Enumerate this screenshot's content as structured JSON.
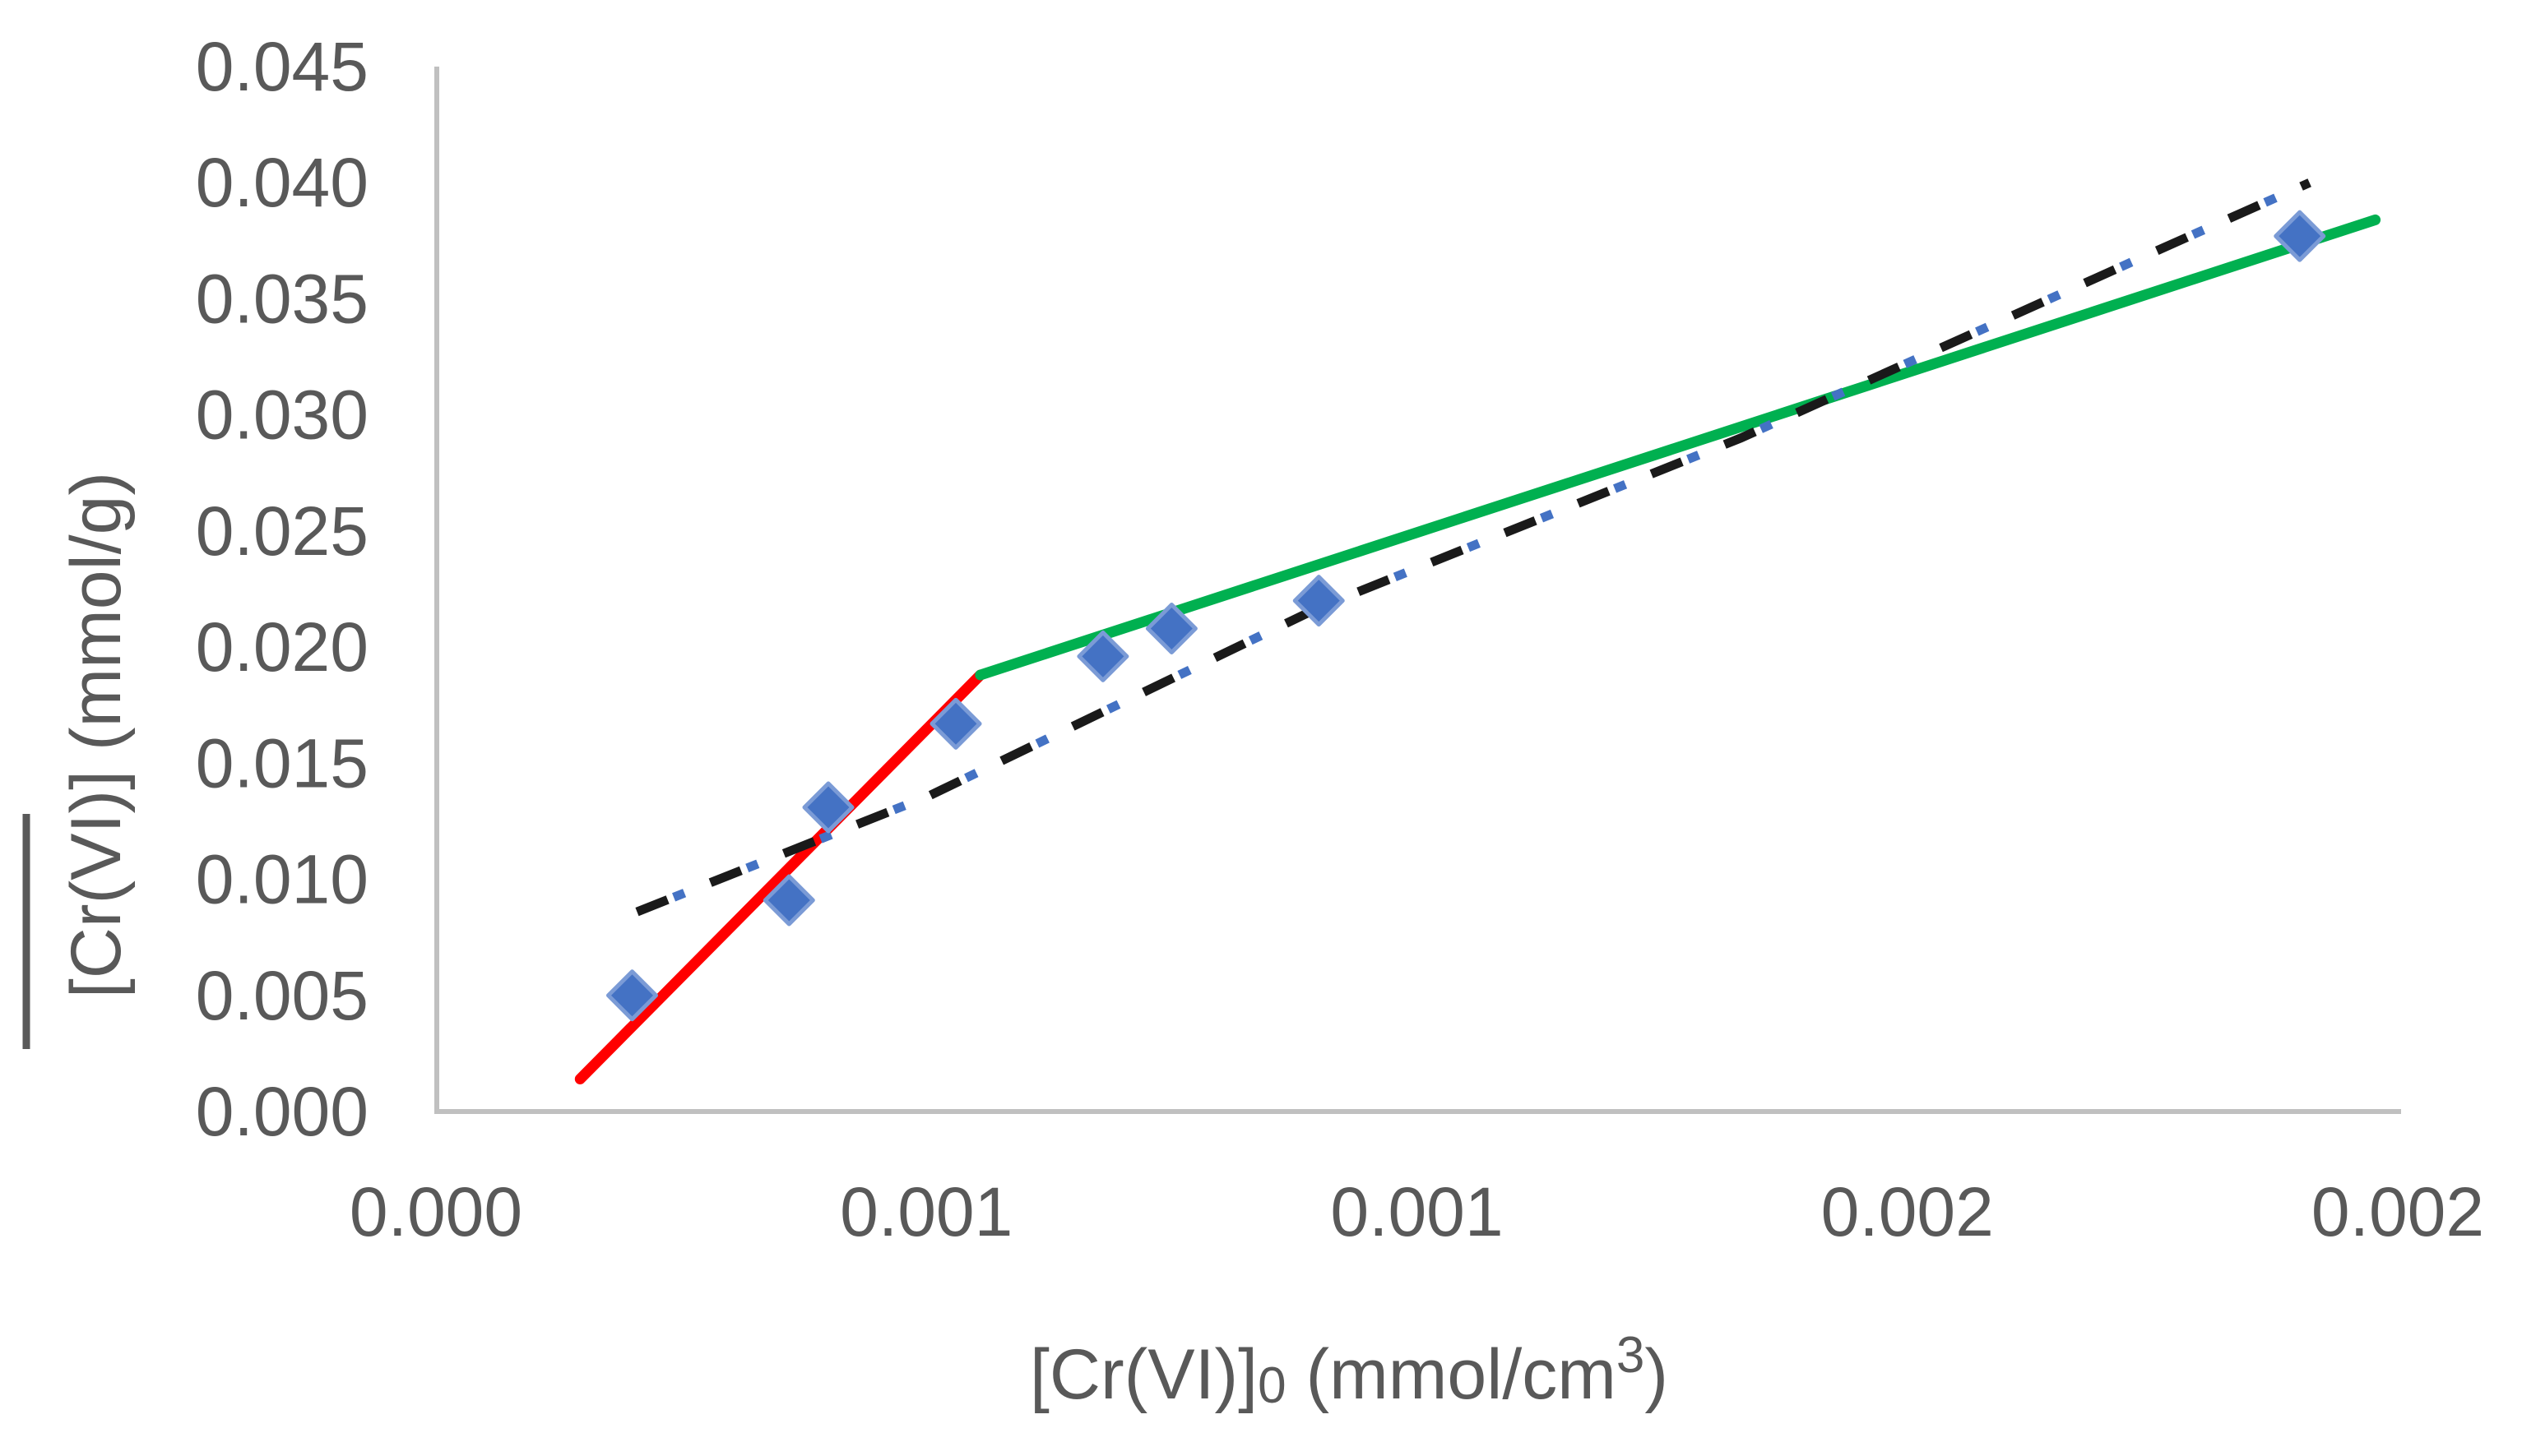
{
  "chart_data": {
    "type": "scatter",
    "title": "",
    "xlabel_parts": [
      {
        "t": "[Cr(VI)]"
      },
      {
        "t": "0",
        "style": "sub"
      },
      {
        "t": " (mmol/cm"
      },
      {
        "t": "3",
        "style": "sup"
      },
      {
        "t": ")"
      }
    ],
    "xlabel_plain": "[Cr(VI)]0 (mmol/cm3)",
    "ylabel_parts": [
      {
        "t": "[Cr(VI)]",
        "style": "overline"
      },
      {
        "t": " (mmol/g)"
      }
    ],
    "ylabel_plain": "[Cr(VI)] (mmol/g)",
    "xlim": [
      0,
      0.002
    ],
    "ylim": [
      0,
      0.045
    ],
    "grid": false,
    "legend": null,
    "x_tick_values": [
      0,
      0.0005,
      0.001,
      0.0015,
      0.002
    ],
    "x_tick_labels": [
      "0.000",
      "0.001",
      "0.001",
      "0.002",
      "0.002"
    ],
    "y_tick_values": [
      0,
      0.005,
      0.01,
      0.015,
      0.02,
      0.025,
      0.03,
      0.035,
      0.04,
      0.045
    ],
    "y_tick_labels": [
      "0.000",
      "0.005",
      "0.010",
      "0.015",
      "0.020",
      "0.025",
      "0.030",
      "0.035",
      "0.040",
      "0.045"
    ],
    "series": [
      {
        "name": "adsorption-data-points",
        "kind": "scatter",
        "marker": "diamond",
        "color": "#4472C4",
        "edge_color": "#7B9BD6",
        "points": [
          [
            0.0002,
            0.005
          ],
          [
            0.00036,
            0.0091
          ],
          [
            0.0004,
            0.0131
          ],
          [
            0.00053,
            0.0167
          ],
          [
            0.00068,
            0.0196
          ],
          [
            0.00075,
            0.0208
          ],
          [
            0.0009,
            0.022
          ],
          [
            0.0019,
            0.0377
          ]
        ]
      },
      {
        "name": "red-fit-segment",
        "kind": "line",
        "color": "#FF0000",
        "width": 13,
        "points": [
          [
            0.000147,
            0.0014
          ],
          [
            0.000555,
            0.0188
          ]
        ]
      },
      {
        "name": "green-fit-segment",
        "kind": "line",
        "color": "#00B050",
        "width": 13,
        "points": [
          [
            0.000555,
            0.0188
          ],
          [
            0.001977,
            0.0384
          ]
        ]
      },
      {
        "name": "dash-dot-trendline",
        "kind": "dash-dot-line",
        "dash_color": "#1A1A1A",
        "dot_color": "#4472C4",
        "width": 11,
        "points": [
          [
            0.000205,
            0.0086
          ],
          [
            0.000503,
            0.0136
          ],
          [
            0.0009,
            0.0217
          ],
          [
            0.00133,
            0.029
          ],
          [
            0.00174,
            0.0368
          ],
          [
            0.00191,
            0.04
          ]
        ]
      }
    ],
    "axis_line_color": "#C0C0C0",
    "tick_label_color": "#595959"
  }
}
